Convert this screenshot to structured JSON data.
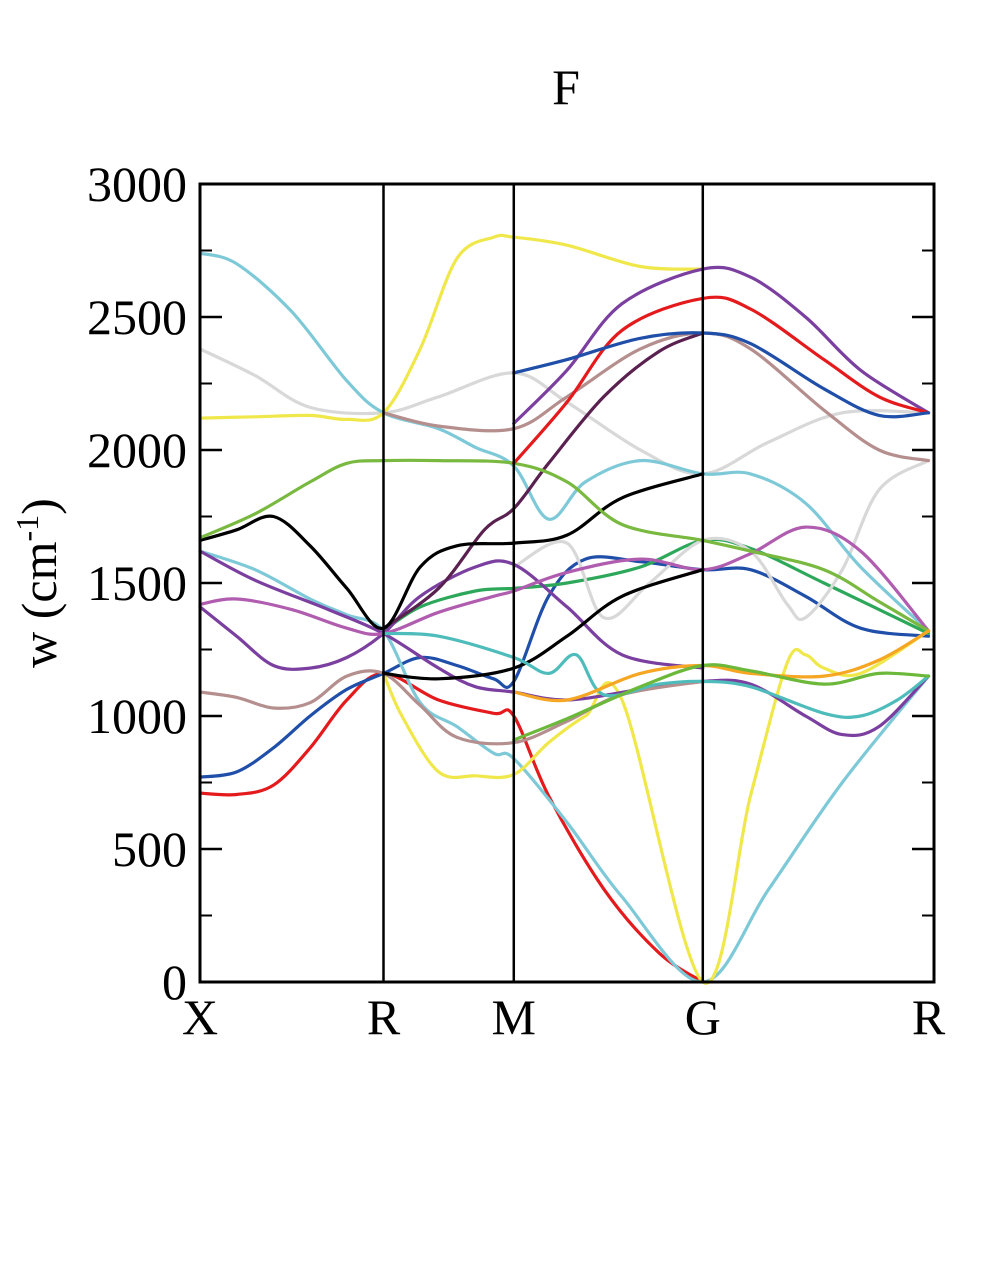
{
  "chart_data": {
    "type": "line",
    "title": "F",
    "ylabel": "w (cm",
    "ylabel_sup": "-1",
    "ylabel_close": ")",
    "xlabel": "",
    "ylim": [
      0,
      3000
    ],
    "yticks": [
      0,
      500,
      1000,
      1500,
      2000,
      2500,
      3000
    ],
    "yminor": [
      250,
      750,
      1250,
      1750,
      2250,
      2750
    ],
    "xlim": [
      0,
      4
    ],
    "high_symmetry_points": [
      {
        "label": "X",
        "x": 0
      },
      {
        "label": "R",
        "x": 1
      },
      {
        "label": "M",
        "x": 1.71
      },
      {
        "label": "G",
        "x": 2.74
      },
      {
        "label": "R",
        "x": 3.97
      }
    ],
    "grid": false,
    "legend": "none",
    "series": [
      {
        "color": "#e41a1c",
        "points": [
          [
            0,
            710
          ],
          [
            0.2,
            705
          ],
          [
            0.4,
            740
          ],
          [
            0.6,
            880
          ],
          [
            0.8,
            1060
          ],
          [
            1,
            1160
          ],
          [
            1.3,
            1060
          ],
          [
            1.6,
            1010
          ],
          [
            1.71,
            1000
          ],
          [
            1.9,
            700
          ],
          [
            2.2,
            350
          ],
          [
            2.5,
            110
          ],
          [
            2.74,
            0
          ]
        ]
      },
      {
        "color": "#1f4fa8",
        "points": [
          [
            0,
            770
          ],
          [
            0.2,
            790
          ],
          [
            0.4,
            880
          ],
          [
            0.6,
            1000
          ],
          [
            0.8,
            1100
          ],
          [
            1,
            1160
          ],
          [
            1.2,
            1220
          ],
          [
            1.4,
            1190
          ],
          [
            1.6,
            1140
          ],
          [
            1.71,
            1130
          ],
          [
            1.9,
            1450
          ],
          [
            2.1,
            1590
          ],
          [
            2.4,
            1580
          ],
          [
            2.74,
            1550
          ],
          [
            3.0,
            1550
          ],
          [
            3.3,
            1450
          ],
          [
            3.6,
            1330
          ],
          [
            3.97,
            1300
          ]
        ]
      },
      {
        "color": "#2da85a",
        "points": [
          [
            1,
            1320
          ],
          [
            1.2,
            1410
          ],
          [
            1.5,
            1470
          ],
          [
            1.71,
            1480
          ],
          [
            2.0,
            1500
          ],
          [
            2.4,
            1560
          ],
          [
            2.74,
            1660
          ],
          [
            3.0,
            1630
          ],
          [
            3.4,
            1500
          ],
          [
            3.97,
            1310
          ]
        ]
      },
      {
        "color": "#d8d8d8",
        "points": [
          [
            0,
            2380
          ],
          [
            0.3,
            2280
          ],
          [
            0.6,
            2160
          ],
          [
            1,
            2140
          ],
          [
            1.3,
            2200
          ],
          [
            1.71,
            2290
          ],
          [
            2.0,
            2180
          ],
          [
            2.4,
            2000
          ],
          [
            2.74,
            1910
          ],
          [
            3.1,
            2030
          ],
          [
            3.5,
            2140
          ],
          [
            3.97,
            2140
          ]
        ]
      },
      {
        "color": "#d8d8d8",
        "points": [
          [
            1.71,
            1560
          ],
          [
            2.0,
            1650
          ],
          [
            2.2,
            1370
          ],
          [
            2.45,
            1500
          ],
          [
            2.74,
            1660
          ],
          [
            3.0,
            1620
          ],
          [
            3.2,
            1420
          ],
          [
            3.3,
            1370
          ],
          [
            3.5,
            1550
          ],
          [
            3.7,
            1850
          ],
          [
            3.97,
            1960
          ]
        ]
      },
      {
        "color": "#7ec9d8",
        "points": [
          [
            0,
            2740
          ],
          [
            0.2,
            2700
          ],
          [
            0.5,
            2520
          ],
          [
            0.8,
            2260
          ],
          [
            1,
            2140
          ],
          [
            1.3,
            2080
          ],
          [
            1.5,
            2010
          ],
          [
            1.71,
            1940
          ],
          [
            1.9,
            1740
          ],
          [
            2.1,
            1880
          ],
          [
            2.4,
            1960
          ],
          [
            2.74,
            1910
          ],
          [
            3.0,
            1910
          ],
          [
            3.3,
            1800
          ],
          [
            3.6,
            1560
          ],
          [
            3.97,
            1320
          ]
        ]
      },
      {
        "color": "#7ec9d8",
        "points": [
          [
            0,
            1620
          ],
          [
            0.3,
            1550
          ],
          [
            0.6,
            1440
          ],
          [
            0.8,
            1380
          ],
          [
            1,
            1320
          ],
          [
            1.2,
            1050
          ],
          [
            1.4,
            960
          ],
          [
            1.6,
            860
          ],
          [
            1.71,
            840
          ],
          [
            2.0,
            600
          ],
          [
            2.3,
            320
          ],
          [
            2.74,
            0
          ],
          [
            3.1,
            350
          ],
          [
            3.5,
            750
          ],
          [
            3.97,
            1150
          ]
        ]
      },
      {
        "color": "#f0e84a",
        "points": [
          [
            0,
            2120
          ],
          [
            0.3,
            2125
          ],
          [
            0.6,
            2130
          ],
          [
            0.8,
            2115
          ],
          [
            1,
            2140
          ],
          [
            1.2,
            2380
          ],
          [
            1.4,
            2720
          ],
          [
            1.6,
            2800
          ],
          [
            1.71,
            2800
          ],
          [
            2.0,
            2770
          ],
          [
            2.4,
            2690
          ],
          [
            2.74,
            2680
          ]
        ]
      },
      {
        "color": "#f0e84a",
        "points": [
          [
            1,
            1160
          ],
          [
            1.1,
            1000
          ],
          [
            1.3,
            790
          ],
          [
            1.5,
            775
          ],
          [
            1.71,
            780
          ],
          [
            1.9,
            900
          ],
          [
            2.1,
            1000
          ],
          [
            2.3,
            1060
          ],
          [
            2.74,
            0
          ],
          [
            3.0,
            700
          ],
          [
            3.2,
            1200
          ],
          [
            3.3,
            1230
          ],
          [
            3.4,
            1180
          ],
          [
            3.6,
            1160
          ],
          [
            3.97,
            1320
          ]
        ]
      },
      {
        "color": "#7b3fa0",
        "points": [
          [
            0,
            1620
          ],
          [
            0.3,
            1510
          ],
          [
            0.7,
            1400
          ],
          [
            1,
            1310
          ],
          [
            1.3,
            1180
          ],
          [
            1.5,
            1110
          ],
          [
            1.71,
            1090
          ],
          [
            2.0,
            1060
          ],
          [
            2.4,
            1100
          ],
          [
            2.74,
            1130
          ],
          [
            3.0,
            1120
          ],
          [
            3.3,
            1000
          ],
          [
            3.5,
            930
          ],
          [
            3.7,
            960
          ],
          [
            3.97,
            1150
          ]
        ]
      },
      {
        "color": "#7b3fa0",
        "points": [
          [
            0,
            1410
          ],
          [
            0.2,
            1300
          ],
          [
            0.4,
            1190
          ],
          [
            0.6,
            1180
          ],
          [
            0.8,
            1220
          ],
          [
            1,
            1310
          ],
          [
            1.2,
            1450
          ],
          [
            1.5,
            1560
          ],
          [
            1.71,
            1570
          ],
          [
            2.0,
            1410
          ],
          [
            2.3,
            1230
          ],
          [
            2.74,
            1180
          ]
        ]
      },
      {
        "color": "#7b3fa0",
        "points": [
          [
            1.71,
            2100
          ],
          [
            2.0,
            2300
          ],
          [
            2.3,
            2550
          ],
          [
            2.74,
            2680
          ],
          [
            3.0,
            2650
          ],
          [
            3.3,
            2500
          ],
          [
            3.6,
            2300
          ],
          [
            3.97,
            2140
          ]
        ]
      },
      {
        "color": "#b58e8e",
        "points": [
          [
            0,
            1090
          ],
          [
            0.2,
            1070
          ],
          [
            0.4,
            1030
          ],
          [
            0.6,
            1050
          ],
          [
            0.8,
            1150
          ],
          [
            1,
            1160
          ],
          [
            1.2,
            1040
          ],
          [
            1.4,
            920
          ],
          [
            1.71,
            900
          ],
          [
            2.0,
            980
          ],
          [
            2.3,
            1080
          ],
          [
            2.74,
            1130
          ]
        ]
      },
      {
        "color": "#b58e8e",
        "points": [
          [
            1,
            2140
          ],
          [
            1.3,
            2090
          ],
          [
            1.71,
            2080
          ],
          [
            2.0,
            2200
          ],
          [
            2.4,
            2380
          ],
          [
            2.74,
            2440
          ],
          [
            3.0,
            2380
          ],
          [
            3.4,
            2150
          ],
          [
            3.7,
            2000
          ],
          [
            3.97,
            1960
          ]
        ]
      },
      {
        "color": "#b05db0",
        "points": [
          [
            0,
            1420
          ],
          [
            0.2,
            1440
          ],
          [
            0.5,
            1400
          ],
          [
            0.8,
            1330
          ],
          [
            1,
            1310
          ],
          [
            1.3,
            1390
          ],
          [
            1.6,
            1450
          ],
          [
            1.71,
            1470
          ],
          [
            2.0,
            1540
          ],
          [
            2.4,
            1590
          ],
          [
            2.74,
            1550
          ],
          [
            3.0,
            1610
          ],
          [
            3.3,
            1710
          ],
          [
            3.6,
            1620
          ],
          [
            3.97,
            1320
          ]
        ]
      },
      {
        "color": "#5a2150",
        "points": [
          [
            1,
            1330
          ],
          [
            1.3,
            1480
          ],
          [
            1.55,
            1700
          ],
          [
            1.71,
            1780
          ],
          [
            1.9,
            1950
          ],
          [
            2.2,
            2200
          ],
          [
            2.5,
            2370
          ],
          [
            2.74,
            2440
          ]
        ]
      },
      {
        "color": "#000000",
        "points": [
          [
            0,
            1660
          ],
          [
            0.2,
            1700
          ],
          [
            0.4,
            1750
          ],
          [
            0.6,
            1640
          ],
          [
            0.8,
            1480
          ],
          [
            1,
            1330
          ],
          [
            1.2,
            1560
          ],
          [
            1.4,
            1640
          ],
          [
            1.71,
            1650
          ],
          [
            2.0,
            1680
          ],
          [
            2.3,
            1820
          ],
          [
            2.74,
            1910
          ]
        ]
      },
      {
        "color": "#000000",
        "points": [
          [
            1,
            1160
          ],
          [
            1.3,
            1140
          ],
          [
            1.71,
            1180
          ],
          [
            2.0,
            1300
          ],
          [
            2.3,
            1450
          ],
          [
            2.74,
            1550
          ]
        ]
      },
      {
        "color": "#79b940",
        "points": [
          [
            0,
            1670
          ],
          [
            0.3,
            1760
          ],
          [
            0.6,
            1880
          ],
          [
            0.8,
            1950
          ],
          [
            1,
            1960
          ],
          [
            1.3,
            1960
          ],
          [
            1.71,
            1950
          ],
          [
            2.0,
            1880
          ],
          [
            2.3,
            1720
          ],
          [
            2.74,
            1660
          ],
          [
            3.0,
            1620
          ],
          [
            3.4,
            1550
          ],
          [
            3.7,
            1430
          ],
          [
            3.97,
            1320
          ]
        ]
      },
      {
        "color": "#4fbcbc",
        "points": [
          [
            1,
            1310
          ],
          [
            1.3,
            1300
          ],
          [
            1.71,
            1220
          ],
          [
            1.9,
            1160
          ],
          [
            2.05,
            1230
          ],
          [
            2.2,
            1080
          ],
          [
            2.5,
            1120
          ],
          [
            2.74,
            1130
          ],
          [
            3.0,
            1110
          ],
          [
            3.4,
            1010
          ],
          [
            3.6,
            1000
          ],
          [
            3.8,
            1060
          ],
          [
            3.97,
            1150
          ]
        ]
      },
      {
        "color": "#f5a623",
        "points": [
          [
            1.71,
            1090
          ],
          [
            2.0,
            1060
          ],
          [
            2.4,
            1160
          ],
          [
            2.74,
            1190
          ],
          [
            3.0,
            1160
          ],
          [
            3.4,
            1150
          ],
          [
            3.7,
            1210
          ],
          [
            3.97,
            1320
          ]
        ]
      },
      {
        "color": "#e41a1c",
        "points": [
          [
            1.71,
            1950
          ],
          [
            2.0,
            2180
          ],
          [
            2.3,
            2450
          ],
          [
            2.74,
            2570
          ],
          [
            3.0,
            2530
          ],
          [
            3.4,
            2340
          ],
          [
            3.7,
            2200
          ],
          [
            3.97,
            2140
          ]
        ]
      },
      {
        "color": "#1f4fa8",
        "points": [
          [
            1.71,
            2290
          ],
          [
            2.0,
            2340
          ],
          [
            2.4,
            2420
          ],
          [
            2.74,
            2440
          ],
          [
            3.0,
            2400
          ],
          [
            3.4,
            2230
          ],
          [
            3.7,
            2130
          ],
          [
            3.97,
            2140
          ]
        ]
      },
      {
        "color": "#6bb83a",
        "points": [
          [
            1.71,
            910
          ],
          [
            2.0,
            990
          ],
          [
            2.4,
            1110
          ],
          [
            2.74,
            1190
          ],
          [
            3.0,
            1170
          ],
          [
            3.4,
            1120
          ],
          [
            3.7,
            1160
          ],
          [
            3.97,
            1150
          ]
        ]
      }
    ]
  }
}
